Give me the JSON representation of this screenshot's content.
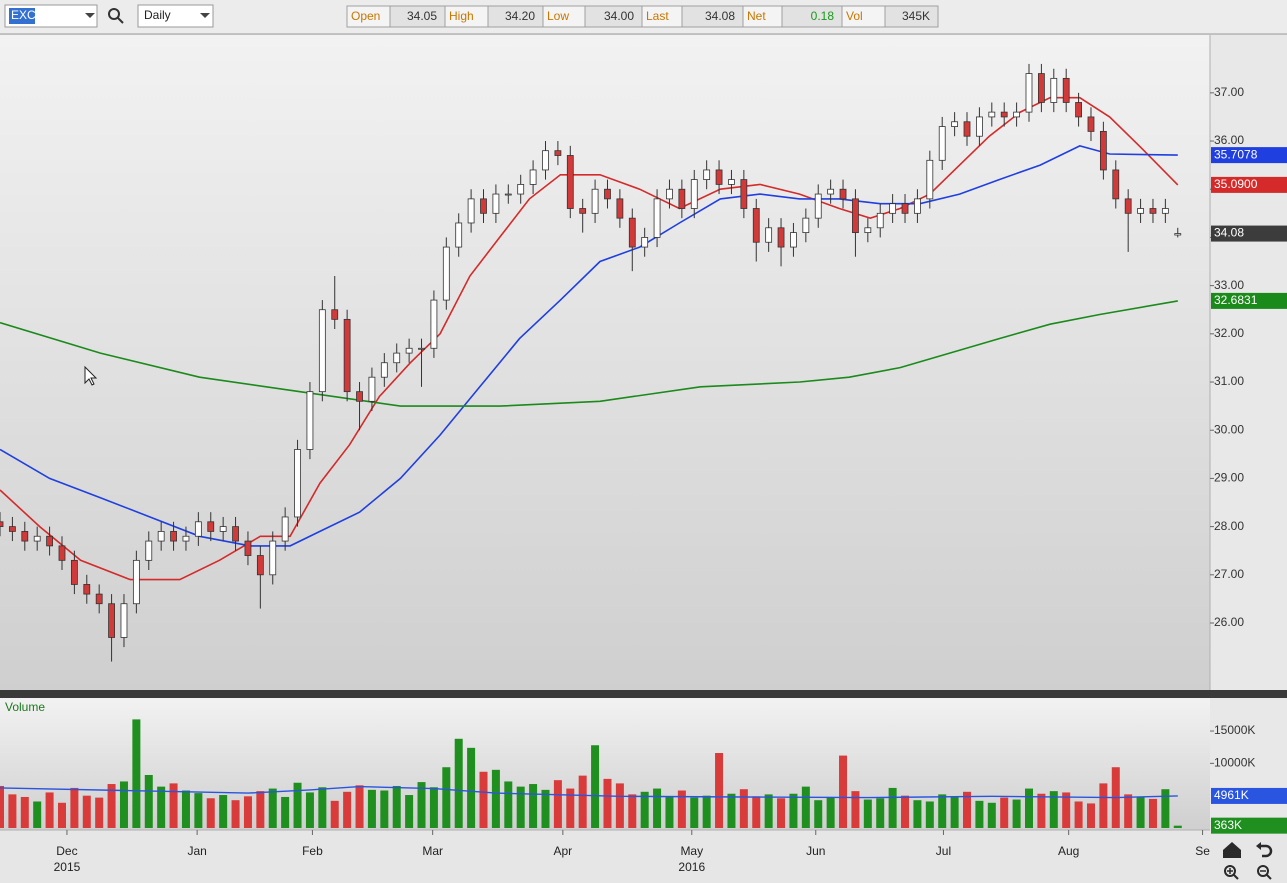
{
  "toolbar": {
    "symbol": "EXC",
    "interval": "Daily",
    "quote": [
      {
        "label": "Open",
        "value": "34.05"
      },
      {
        "label": "High",
        "value": "34.20"
      },
      {
        "label": "Low",
        "value": "34.00"
      },
      {
        "label": "Last",
        "value": "34.08"
      },
      {
        "label": "Net",
        "value": "0.18"
      },
      {
        "label": "Vol",
        "value": "345K"
      }
    ]
  },
  "chart_data": [
    {
      "type": "candlestick",
      "open": [
        28.1,
        28.0,
        27.9,
        27.7,
        27.8,
        27.6,
        27.3,
        26.8,
        26.6,
        26.4,
        25.7,
        26.4,
        27.3,
        27.7,
        27.9,
        27.7,
        27.8,
        28.1,
        27.9,
        28.0,
        27.7,
        27.4,
        27.0,
        27.7,
        28.2,
        29.6,
        30.8,
        32.5,
        32.3,
        30.8,
        30.6,
        31.1,
        31.4,
        31.6,
        31.7,
        31.7,
        32.7,
        33.8,
        34.3,
        34.8,
        34.5,
        34.9,
        34.9,
        35.1,
        35.4,
        35.8,
        35.7,
        34.6,
        34.5,
        35.0,
        34.8,
        34.4,
        33.8,
        34.0,
        34.8,
        35.0,
        34.6,
        35.2,
        35.4,
        35.1,
        35.2,
        34.6,
        33.9,
        34.2,
        33.8,
        34.1,
        34.4,
        34.9,
        35.0,
        34.8,
        34.1,
        34.2,
        34.5,
        34.7,
        34.5,
        34.8,
        35.6,
        36.3,
        36.4,
        36.1,
        36.5,
        36.6,
        36.5,
        36.6,
        37.4,
        36.8,
        37.3,
        36.8,
        36.5,
        36.2,
        35.4,
        34.8,
        34.5,
        34.6,
        34.5,
        34.05
      ],
      "high": [
        28.3,
        28.2,
        28.1,
        28.0,
        28.0,
        27.8,
        27.5,
        27.0,
        26.8,
        26.6,
        26.6,
        27.5,
        27.9,
        28.1,
        28.1,
        28.0,
        28.3,
        28.3,
        28.2,
        28.2,
        27.9,
        27.6,
        27.9,
        28.4,
        29.8,
        31.0,
        32.7,
        33.2,
        32.5,
        31.0,
        31.3,
        31.6,
        31.8,
        31.9,
        31.9,
        32.9,
        34.0,
        34.5,
        35.0,
        35.0,
        35.1,
        35.1,
        35.3,
        35.6,
        36.0,
        36.0,
        35.9,
        34.8,
        35.2,
        35.2,
        35.0,
        34.6,
        34.2,
        35.0,
        35.2,
        35.2,
        35.4,
        35.6,
        35.6,
        35.4,
        35.4,
        34.8,
        34.4,
        34.4,
        34.3,
        34.6,
        35.1,
        35.2,
        35.2,
        35.0,
        34.4,
        34.7,
        34.9,
        34.9,
        35.0,
        35.8,
        36.5,
        36.6,
        36.6,
        36.7,
        36.8,
        36.8,
        36.8,
        37.6,
        37.6,
        37.5,
        37.5,
        37.0,
        36.7,
        36.4,
        35.6,
        35.0,
        34.8,
        34.8,
        34.8,
        34.2
      ],
      "low": [
        27.8,
        27.7,
        27.5,
        27.5,
        27.4,
        27.1,
        26.6,
        26.4,
        26.2,
        25.2,
        25.5,
        26.2,
        27.1,
        27.5,
        27.5,
        27.5,
        27.6,
        27.7,
        27.7,
        27.5,
        27.2,
        26.3,
        26.8,
        27.5,
        28.0,
        29.4,
        30.6,
        32.1,
        30.6,
        30.0,
        30.4,
        30.9,
        31.2,
        31.4,
        30.9,
        31.5,
        32.5,
        33.6,
        34.1,
        34.3,
        34.3,
        34.7,
        34.7,
        34.9,
        35.2,
        35.5,
        34.4,
        34.1,
        34.3,
        34.6,
        34.2,
        33.3,
        33.6,
        33.8,
        34.6,
        34.4,
        34.4,
        35.0,
        34.9,
        34.9,
        34.4,
        33.5,
        33.7,
        33.4,
        33.6,
        33.9,
        34.2,
        34.7,
        34.6,
        33.6,
        33.9,
        34.0,
        34.3,
        34.3,
        34.3,
        34.6,
        35.4,
        36.1,
        35.9,
        35.9,
        36.3,
        36.3,
        36.3,
        36.4,
        36.6,
        36.6,
        36.6,
        36.3,
        36.0,
        35.2,
        34.6,
        33.7,
        34.3,
        34.3,
        34.3,
        34.0
      ],
      "close": [
        28.0,
        27.9,
        27.7,
        27.8,
        27.6,
        27.3,
        26.8,
        26.6,
        26.4,
        25.7,
        26.4,
        27.3,
        27.7,
        27.9,
        27.7,
        27.8,
        28.1,
        27.9,
        28.0,
        27.7,
        27.4,
        27.0,
        27.7,
        28.2,
        29.6,
        30.8,
        32.5,
        32.3,
        30.8,
        30.6,
        31.1,
        31.4,
        31.6,
        31.7,
        31.7,
        32.7,
        33.8,
        34.3,
        34.8,
        34.5,
        34.9,
        34.9,
        35.1,
        35.4,
        35.8,
        35.7,
        34.6,
        34.5,
        35.0,
        34.8,
        34.4,
        33.8,
        34.0,
        34.8,
        35.0,
        34.6,
        35.2,
        35.4,
        35.1,
        35.2,
        34.6,
        33.9,
        34.2,
        33.8,
        34.1,
        34.4,
        34.9,
        35.0,
        34.8,
        34.1,
        34.2,
        34.5,
        34.7,
        34.5,
        34.8,
        35.6,
        36.3,
        36.4,
        36.1,
        36.5,
        36.6,
        36.5,
        36.6,
        37.4,
        36.8,
        37.3,
        36.8,
        36.5,
        36.2,
        35.4,
        34.8,
        34.5,
        34.6,
        34.5,
        34.6,
        34.08
      ],
      "up_color": "#ffffff",
      "down_color": "#d23a3a",
      "last_price": 34.08,
      "xlim": [
        0,
        97.6
      ],
      "xticks": [
        {
          "value": 5.4,
          "label": "Dec"
        },
        {
          "value": 15.9,
          "label": "Jan"
        },
        {
          "value": 25.2,
          "label": "Feb"
        },
        {
          "value": 34.9,
          "label": "Mar"
        },
        {
          "value": 45.4,
          "label": "Apr"
        },
        {
          "value": 55.8,
          "label": "May"
        },
        {
          "value": 65.8,
          "label": "Jun"
        },
        {
          "value": 76.1,
          "label": "Jul"
        },
        {
          "value": 86.2,
          "label": "Aug"
        },
        {
          "value": 97.0,
          "label": "Se"
        }
      ],
      "year_ticks": [
        {
          "value": 5.4,
          "label": "2015"
        },
        {
          "value": 55.8,
          "label": "2016"
        }
      ],
      "ylim": [
        24.61,
        38.2
      ],
      "yticks": [
        {
          "value": 26,
          "label": "26.00"
        },
        {
          "value": 27,
          "label": "27.00"
        },
        {
          "value": 28,
          "label": "28.00"
        },
        {
          "value": 29,
          "label": "29.00"
        },
        {
          "value": 30,
          "label": "30.00"
        },
        {
          "value": 31,
          "label": "31.00"
        },
        {
          "value": 32,
          "label": "32.00"
        },
        {
          "value": 33,
          "label": "33.00"
        },
        {
          "value": 34,
          "label": "34.00"
        },
        {
          "value": 35,
          "label": "35.00"
        },
        {
          "value": 36,
          "label": "36.00"
        },
        {
          "value": 37,
          "label": "37.00"
        }
      ],
      "lines": [
        {
          "color": "#d42a2a",
          "x": [
            0,
            3.2,
            6.5,
            10.5,
            14.5,
            17.7,
            21,
            23.4,
            25.8,
            28.2,
            30.6,
            33.1,
            35.5,
            37.9,
            40.3,
            42.7,
            45.2,
            48.4,
            51.6,
            54.8,
            58.1,
            61.3,
            64.5,
            67.7,
            70.2,
            72.6,
            75,
            77.4,
            79.8,
            82.3,
            84.7,
            87.1,
            89.5,
            91.9,
            95
          ],
          "values": [
            28.76,
            28.0,
            27.3,
            26.9,
            26.9,
            27.3,
            27.8,
            27.8,
            28.9,
            29.7,
            30.7,
            31.4,
            32.0,
            33.2,
            34.0,
            34.8,
            35.3,
            35.3,
            35.0,
            34.6,
            35.0,
            35.1,
            34.9,
            34.6,
            34.4,
            34.6,
            34.9,
            35.5,
            36.1,
            36.6,
            36.9,
            36.9,
            36.5,
            35.9,
            35.09
          ],
          "last_value": {
            "value": 35.09,
            "label": "35.0900"
          }
        },
        {
          "color": "#1f3fe0",
          "x": [
            0,
            4,
            8.1,
            12.1,
            16.1,
            20.2,
            23.4,
            25.8,
            29,
            32.3,
            35.5,
            38.7,
            41.9,
            45.2,
            48.4,
            51.6,
            54.8,
            58.1,
            61.3,
            64.5,
            67.7,
            71,
            74.2,
            77.4,
            80.6,
            83.9,
            87.1,
            89.5,
            95
          ],
          "values": [
            29.6,
            29.0,
            28.6,
            28.2,
            27.8,
            27.6,
            27.6,
            27.9,
            28.3,
            29.0,
            29.9,
            30.9,
            31.9,
            32.7,
            33.5,
            33.8,
            34.3,
            34.8,
            34.9,
            34.8,
            34.8,
            34.7,
            34.7,
            34.9,
            35.2,
            35.5,
            35.9,
            35.73,
            35.7078
          ],
          "last_value": {
            "value": 35.7078,
            "label": "35.7078"
          }
        },
        {
          "color": "#1a8a1a",
          "x": [
            0,
            8.1,
            16.1,
            24.2,
            32.3,
            36.3,
            40.3,
            48.4,
            56.5,
            64.5,
            68.5,
            72.6,
            76.6,
            80.6,
            84.7,
            88.7,
            95
          ],
          "values": [
            32.23,
            31.6,
            31.1,
            30.8,
            30.5,
            30.5,
            30.5,
            30.6,
            30.9,
            31.0,
            31.1,
            31.3,
            31.6,
            31.9,
            32.2,
            32.4,
            32.6831
          ],
          "last_value": {
            "value": 32.6831,
            "label": "32.6831"
          }
        }
      ]
    },
    {
      "type": "bar",
      "title": "Volume",
      "values": [
        6500,
        5200,
        4800,
        4100,
        5500,
        3900,
        6200,
        5000,
        4700,
        6800,
        7200,
        16800,
        8200,
        6400,
        6900,
        5800,
        5400,
        4600,
        5100,
        4300,
        4900,
        5700,
        6100,
        4800,
        7000,
        5500,
        6300,
        4200,
        5600,
        6600,
        5900,
        5800,
        6500,
        5100,
        7100,
        6300,
        9400,
        13800,
        12400,
        8700,
        9000,
        7200,
        6400,
        6800,
        5900,
        7400,
        6100,
        8100,
        12800,
        7600,
        6900,
        5200,
        5600,
        6100,
        4800,
        5800,
        4700,
        5000,
        11600,
        5300,
        6000,
        4900,
        5200,
        4600,
        5300,
        6400,
        4300,
        4800,
        11200,
        5700,
        4400,
        4600,
        6200,
        5000,
        4300,
        4100,
        5200,
        4800,
        5600,
        4200,
        3900,
        4700,
        4400,
        6100,
        5300,
        5700,
        5500,
        4100,
        3800,
        6900,
        9400,
        5200,
        4800,
        4500,
        6000,
        363
      ],
      "up_color": "#1f8f1f",
      "down_color": "#d93a3a",
      "last_value": {
        "value": 363,
        "label": "363K"
      },
      "ylim": [
        0,
        19800
      ],
      "yticks": [
        {
          "value": 10000,
          "label": "10000K"
        },
        {
          "value": 15000,
          "label": "15000K"
        }
      ],
      "line": {
        "color": "#2a55e0",
        "x": [
          0,
          10,
          20,
          25,
          29,
          35,
          40,
          50,
          60,
          70,
          80,
          90,
          95
        ],
        "values": [
          6200,
          5800,
          5400,
          5900,
          6400,
          6100,
          5400,
          4900,
          4800,
          4700,
          4900,
          4700,
          4961
        ],
        "last_value": {
          "value": 4961,
          "label": "4961K"
        }
      }
    }
  ]
}
